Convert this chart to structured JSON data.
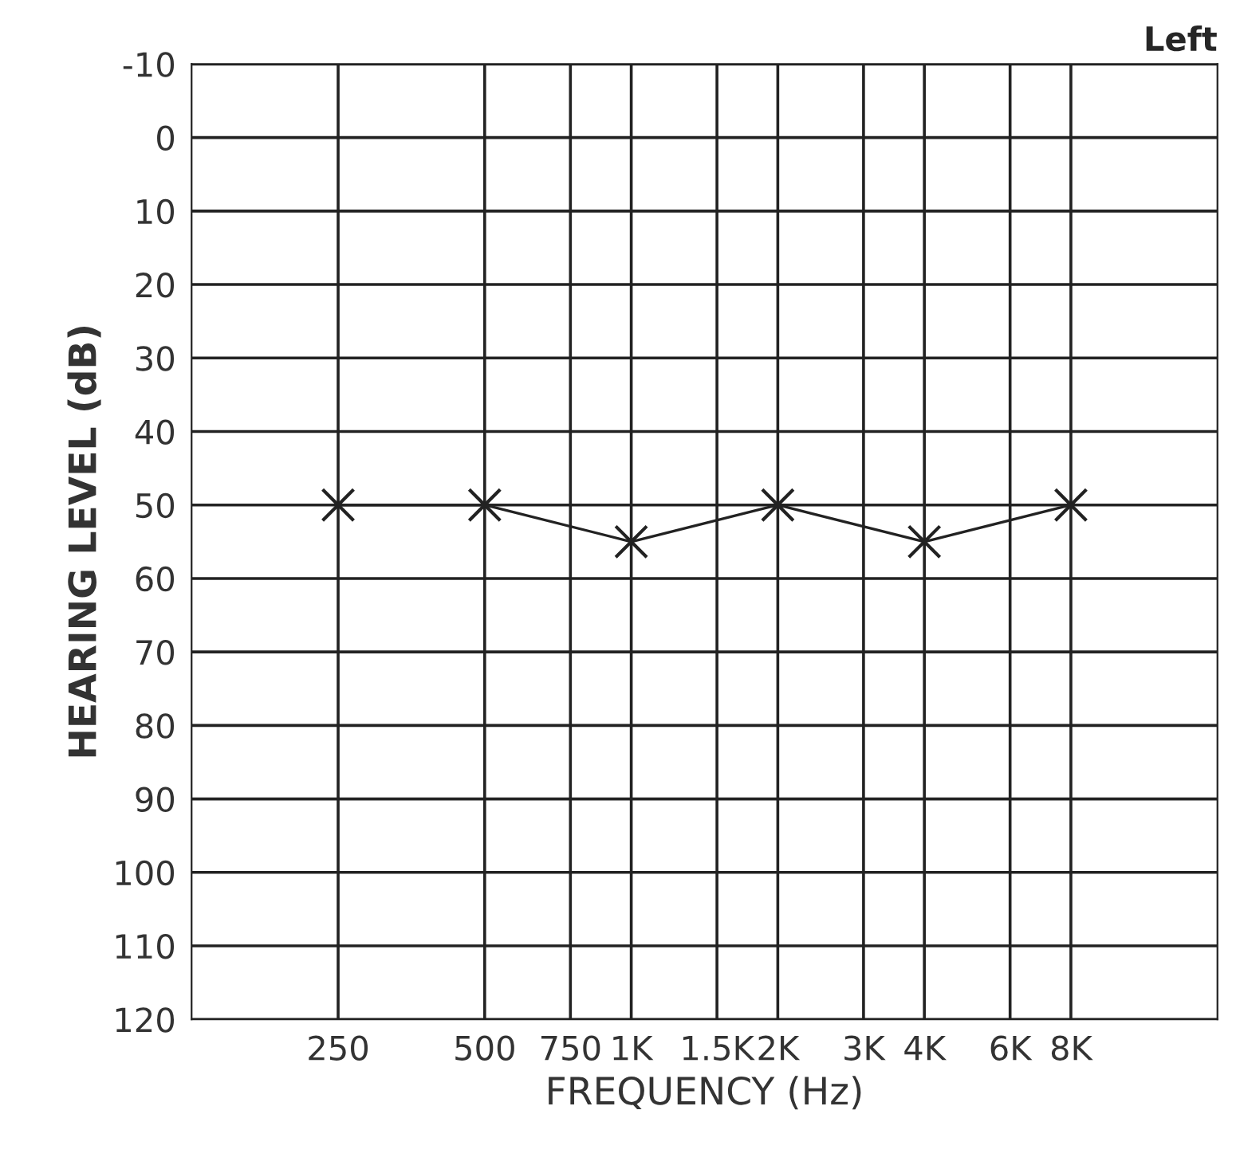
{
  "chart_data": {
    "type": "line",
    "title": "Left",
    "xlabel": "FREQUENCY (Hz)",
    "ylabel": "HEARING LEVEL (dB)",
    "log": "x",
    "xlim": [
      125,
      16000
    ],
    "ylim": [
      120,
      -10
    ],
    "xticks": [
      250,
      500,
      750,
      {
        "value": 1000,
        "label": "1K"
      },
      {
        "value": 1500,
        "label": "1.5K"
      },
      {
        "value": 2000,
        "label": "2K"
      },
      {
        "value": 3000,
        "label": "3K"
      },
      {
        "value": 4000,
        "label": "4K"
      },
      {
        "value": 6000,
        "label": "6K"
      },
      {
        "value": 8000,
        "label": "8K"
      }
    ],
    "yticks": [
      -10,
      0,
      10,
      20,
      30,
      40,
      50,
      60,
      70,
      80,
      90,
      100,
      110,
      120
    ],
    "grid": true,
    "marker": "cross",
    "line_style": "solid",
    "series": [
      {
        "color": "#222222",
        "x": [
          250,
          500,
          1000,
          2000,
          4000,
          8000
        ],
        "values": [
          50,
          50,
          55,
          50,
          55,
          50
        ]
      }
    ]
  }
}
